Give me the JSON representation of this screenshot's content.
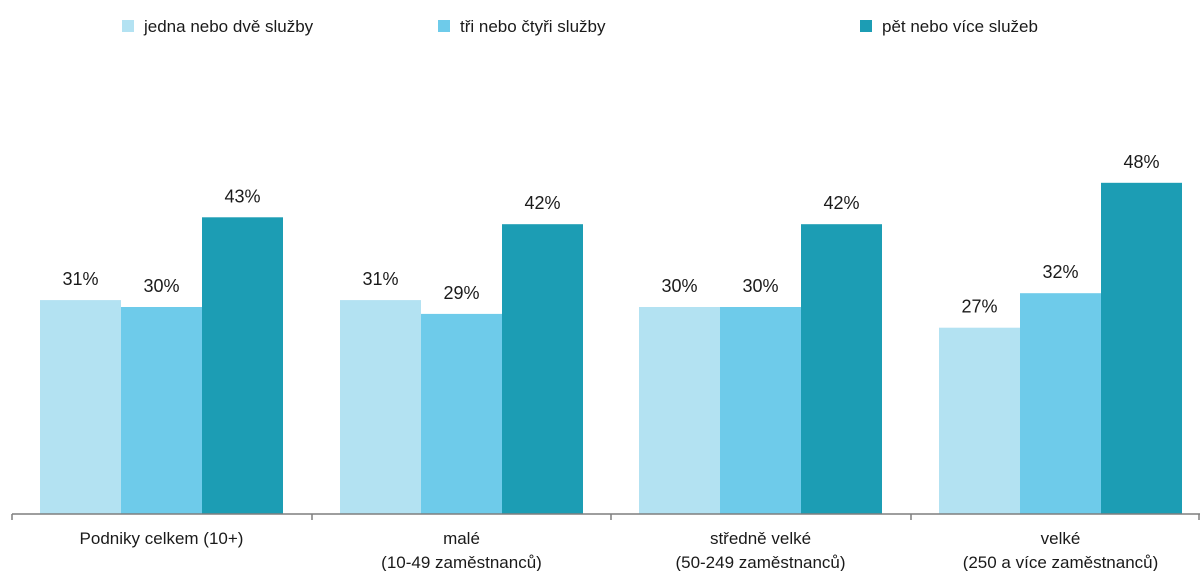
{
  "chart_data": {
    "type": "bar",
    "title": "",
    "xlabel": "",
    "ylabel": "",
    "ylim": [
      0,
      50
    ],
    "grid": false,
    "legend_position": "top",
    "categories": [
      [
        "Podniky celkem (10+)"
      ],
      [
        "malé",
        "(10-49 zaměstnanců)"
      ],
      [
        "středně velké",
        "(50-249 zaměstnanců)"
      ],
      [
        "velké",
        "(250 a více zaměstnanců)"
      ]
    ],
    "series": [
      {
        "name": "jedna nebo dvě služby",
        "color": "#b3e2f2",
        "values": [
          31,
          31,
          30,
          27
        ],
        "labels": [
          "31%",
          "31%",
          "30%",
          "27%"
        ]
      },
      {
        "name": "tři nebo čtyři služby",
        "color": "#6ecbea",
        "values": [
          30,
          29,
          30,
          32
        ],
        "labels": [
          "30%",
          "29%",
          "30%",
          "32%"
        ]
      },
      {
        "name": "pět nebo více služeb",
        "color": "#1c9db4",
        "values": [
          43,
          42,
          42,
          48
        ],
        "labels": [
          "43%",
          "42%",
          "42%",
          "48%"
        ]
      }
    ]
  }
}
